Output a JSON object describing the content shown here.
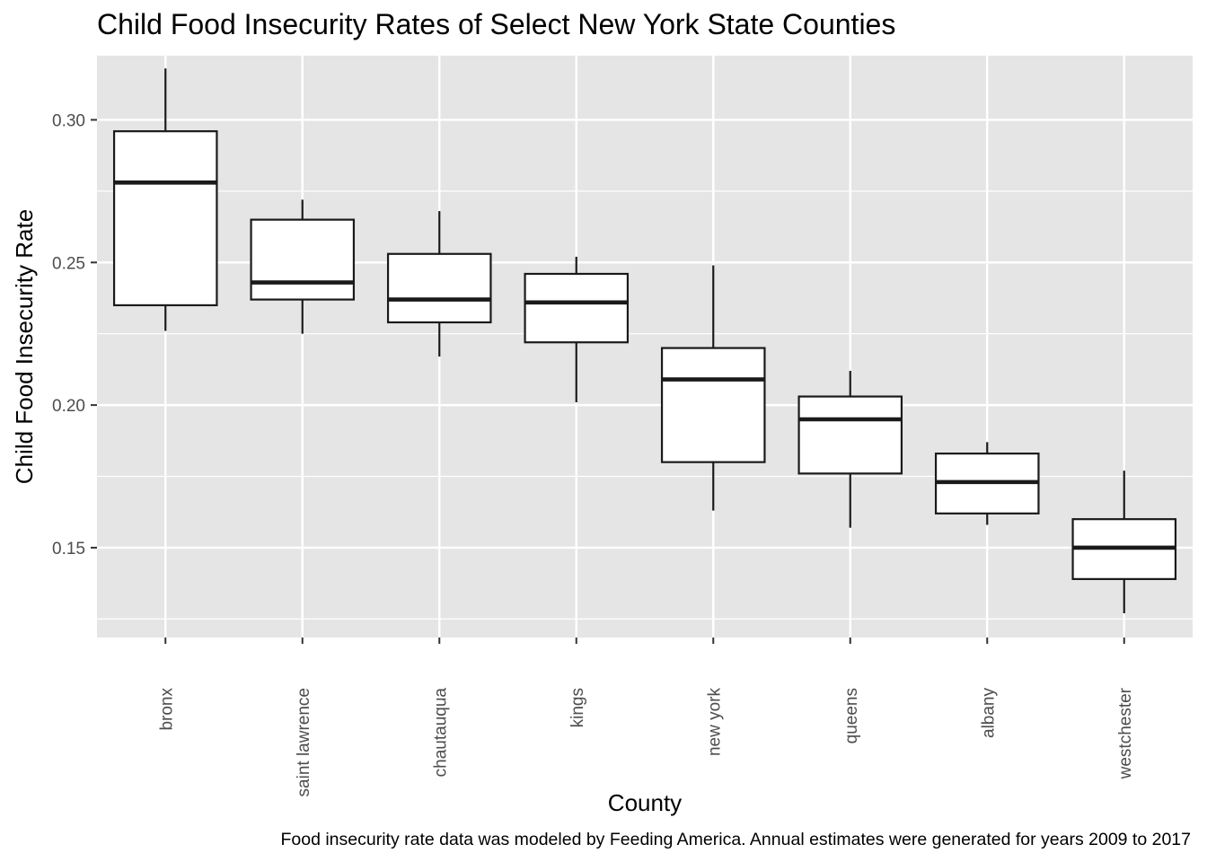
{
  "chart_data": {
    "type": "box",
    "title": "Child Food Insecurity Rates of Select New York State Counties",
    "xlabel": "County",
    "ylabel": "Child Food Insecurity Rate",
    "caption": "Food insecurity rate data was modeled by Feeding America. Annual estimates were generated for years 2009 to 2017",
    "ylim": [
      0.1185,
      0.3225
    ],
    "yticks": [
      0.15,
      0.2,
      0.25,
      0.3
    ],
    "ytick_labels": [
      "0.15",
      "0.20",
      "0.25",
      "0.30"
    ],
    "grid": true,
    "categories": [
      "bronx",
      "saint lawrence",
      "chautauqua",
      "kings",
      "new york",
      "queens",
      "albany",
      "westchester"
    ],
    "boxes": [
      {
        "category": "bronx",
        "min": 0.226,
        "q1": 0.235,
        "median": 0.278,
        "q3": 0.296,
        "max": 0.318
      },
      {
        "category": "saint lawrence",
        "min": 0.225,
        "q1": 0.237,
        "median": 0.243,
        "q3": 0.265,
        "max": 0.272
      },
      {
        "category": "chautauqua",
        "min": 0.217,
        "q1": 0.229,
        "median": 0.237,
        "q3": 0.253,
        "max": 0.268
      },
      {
        "category": "kings",
        "min": 0.201,
        "q1": 0.222,
        "median": 0.236,
        "q3": 0.246,
        "max": 0.252
      },
      {
        "category": "new york",
        "min": 0.163,
        "q1": 0.18,
        "median": 0.209,
        "q3": 0.22,
        "max": 0.249
      },
      {
        "category": "queens",
        "min": 0.157,
        "q1": 0.176,
        "median": 0.195,
        "q3": 0.203,
        "max": 0.212
      },
      {
        "category": "albany",
        "min": 0.158,
        "q1": 0.162,
        "median": 0.173,
        "q3": 0.183,
        "max": 0.187
      },
      {
        "category": "westchester",
        "min": 0.127,
        "q1": 0.139,
        "median": 0.15,
        "q3": 0.16,
        "max": 0.177
      }
    ],
    "colors": {
      "panel_background": "#e5e5e5",
      "grid": "#ffffff",
      "box_fill": "#ffffff",
      "box_stroke": "#1a1a1a",
      "tick_text": "#4d4d4d"
    }
  }
}
